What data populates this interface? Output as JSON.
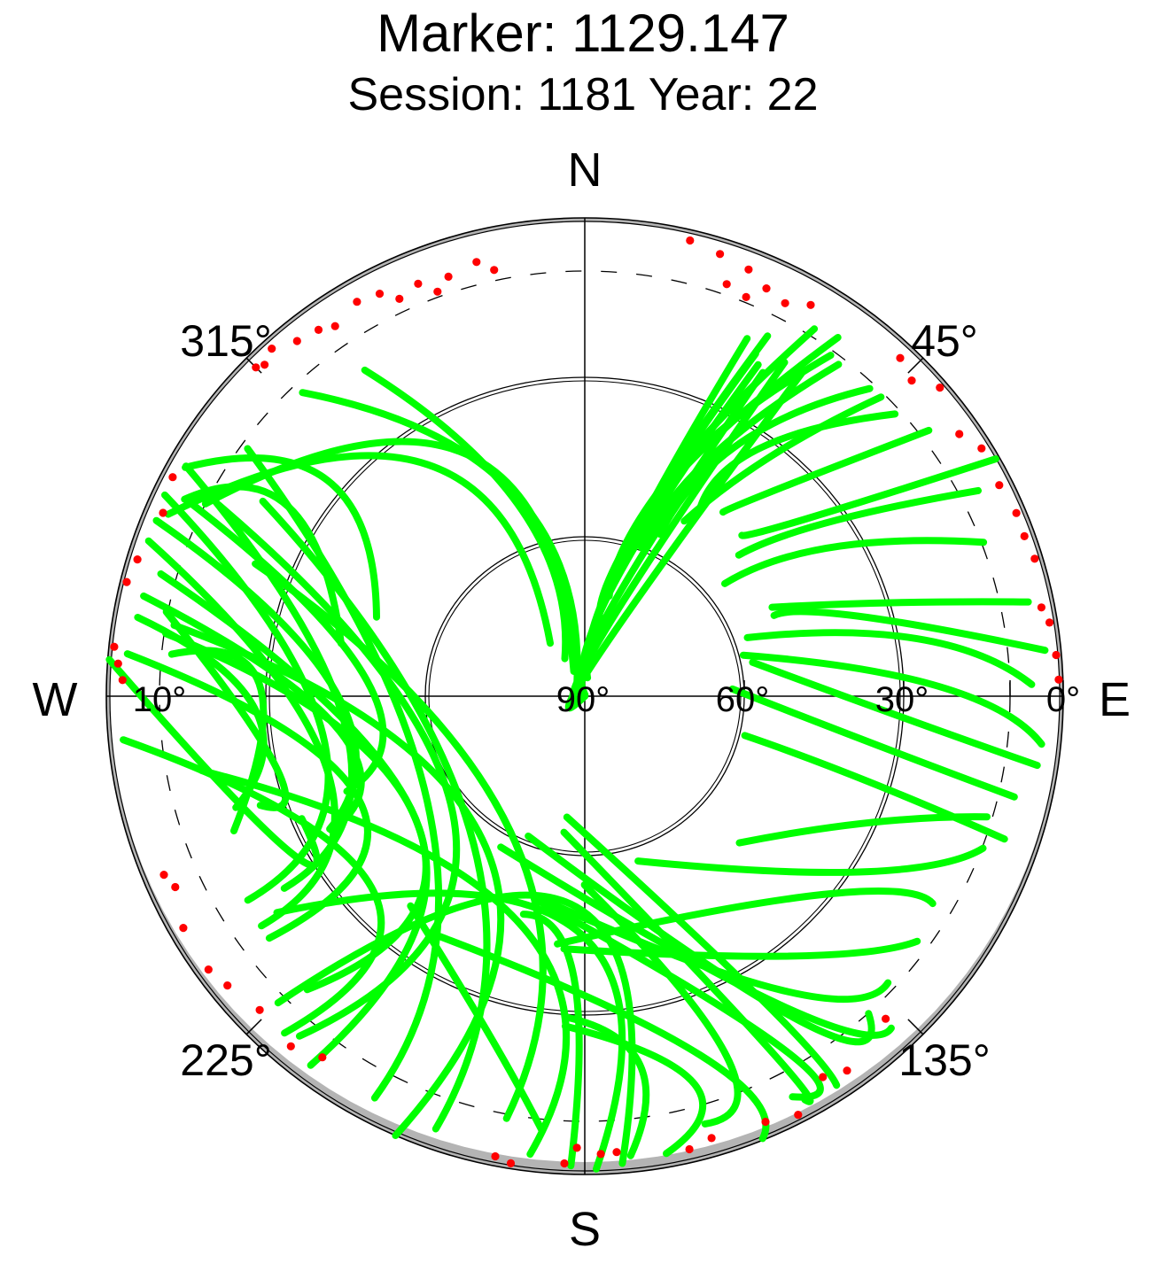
{
  "chart_data": {
    "type": "scatter",
    "projection": "polar-skyplot",
    "title": "Marker: 1129.147",
    "subtitle": "Session: 1181 Year: 22",
    "compass": {
      "north": "N",
      "south": "S",
      "east": "E",
      "west": "W"
    },
    "azimuth_tick_labels": [
      "315°",
      "45°",
      "225°",
      "135°"
    ],
    "elevation_tick_labels": [
      "10°",
      "90°",
      "60°",
      "30°",
      "0°"
    ],
    "elevation_range_deg": [
      0,
      90
    ],
    "elevation_circles_deg": [
      30,
      60
    ],
    "elevation_mask_circle_deg": 10,
    "colors": {
      "in_view": "#00ff00",
      "low_elevation": "#ff0000",
      "mask": "#b4b4b4",
      "frame": "#000000"
    },
    "tracks": [
      {
        "az": [
          -63.1,
          -25.9,
          -23.9
        ],
        "el": [
          10.0,
          39.5,
          84.9
        ]
      },
      {
        "az": [
          -42.9,
          -19.4,
          -26.9
        ],
        "el": [
          12.0,
          49.3,
          86.8
        ]
      },
      {
        "az": [
          -34.0,
          -18.8,
          -28.0
        ],
        "el": [
          16.0,
          52.7,
          82.0
        ]
      },
      {
        "az": [
          -66.4,
          -34.1,
          -33.1
        ],
        "el": [
          4.5,
          37.4,
          78.1
        ]
      },
      {
        "az": [
          -60.2,
          -50.0,
          -69.2
        ],
        "el": [
          3.4,
          26.9,
          48.1
        ]
      },
      {
        "az": [
          -63.8,
          -57.4,
          -77.8
        ],
        "el": [
          6.1,
          23.8,
          43.1
        ]
      },
      {
        "az": [
          -84.2,
          -87.8,
          -111.0
        ],
        "el": [
          11.9,
          28.7,
          19.3
        ]
      },
      {
        "az": [
          -80.0,
          -92.2,
          -107.7
        ],
        "el": [
          4.6,
          27.9,
          21.1
        ]
      },
      {
        "az": [
          -78.6,
          -103.3,
          -108.6
        ],
        "el": [
          9.7,
          30.5,
          25.6
        ]
      },
      {
        "az": [
          -85.6,
          -117.7,
          -113.4
        ],
        "el": [
          0.3,
          27.2,
          32.0
        ]
      },
      {
        "az": [
          -63.8,
          -86.1,
          -111.8
        ],
        "el": [
          6.8,
          49.0,
          41.8
        ]
      },
      {
        "az": [
          -67.7,
          -89.1,
          -117.5
        ],
        "el": [
          2.9,
          43.2,
          35.9
        ]
      },
      {
        "az": [
          -77.2,
          -98.1,
          -118.0
        ],
        "el": [
          4.9,
          43.4,
          36.1
        ]
      },
      {
        "az": [
          -84.7,
          -115.1,
          -127.5
        ],
        "el": [
          3.6,
          43.3,
          15.2
        ]
      },
      {
        "az": [
          -64.4,
          -100.1,
          -121.2
        ],
        "el": [
          2.4,
          40.3,
          15.9
        ]
      },
      {
        "az": [
          -70.4,
          -106.9,
          -125.4
        ],
        "el": [
          2.9,
          39.6,
          15.4
        ]
      },
      {
        "az": [
          -60.0,
          -98.3,
          -122.6
        ],
        "el": [
          3.4,
          44.7,
          22.9
        ]
      },
      {
        "az": [
          -73.9,
          -128.3,
          -136.6
        ],
        "el": [
          7.0,
          50.2,
          14.0
        ]
      },
      {
        "az": [
          -95.4,
          -131.9,
          -138.3
        ],
        "el": [
          2.8,
          36.1,
          5.1
        ]
      },
      {
        "az": [
          -62.4,
          -134.0,
          -140.0
        ],
        "el": [
          12.2,
          55.9,
          6.5
        ]
      },
      {
        "az": [
          -81.5,
          -128.8,
          -143.4
        ],
        "el": [
          10.3,
          50.1,
          3.5
        ]
      },
      {
        "az": [
          -53.7,
          -127.6,
          -152.4
        ],
        "el": [
          11.3,
          53.3,
          4.7
        ]
      },
      {
        "az": [
          -80.2,
          -146.6,
          -156.7
        ],
        "el": [
          11.6,
          56.1,
          0.0
        ]
      },
      {
        "az": [
          -58.8,
          -141.1,
          -161.0
        ],
        "el": [
          19.2,
          56.1,
          3.9
        ]
      },
      {
        "az": [
          -68.1,
          -153.1,
          -169.5
        ],
        "el": [
          23.2,
          60.2,
          9.2
        ]
      },
      {
        "az": [
          -101.0,
          -165.2,
          -173.2
        ],
        "el": [
          16.6,
          44.9,
          3.2
        ]
      },
      {
        "az": [
          -125.1,
          -178.0,
          178.6
        ],
        "el": [
          19.2,
          45.9,
          1.0
        ]
      },
      {
        "az": [
          -135.0,
          -176.1,
          175.4
        ],
        "el": [
          8.4,
          50.8,
          1.8
        ]
      },
      {
        "az": [
          -176.7,
          171.5,
          174.3
        ],
        "el": [
          29.5,
          19.9,
          3.1
        ]
      },
      {
        "az": [
          -164.3,
          -177.8,
          -178.3
        ],
        "el": [
          47.4,
          37.0,
          1.6
        ]
      },
      {
        "az": [
          -176.6,
          164.2,
          169.9
        ],
        "el": [
          27.8,
          14.1,
          2.6
        ]
      },
      {
        "az": [
          -140.3,
          -163.8,
          -174.4
        ],
        "el": [
          38.7,
          24.3,
          7.8
        ]
      },
      {
        "az": [
          -179.9,
          158.5,
          164.3
        ],
        "el": [
          54.5,
          17.2,
          6.4
        ]
      },
      {
        "az": [
          -148.9,
          162.2,
          158.1
        ],
        "el": [
          37.2,
          19.1,
          0.3
        ]
      },
      {
        "az": [
          -171.3,
          152.6,
          151.4
        ],
        "el": [
          64.1,
          16.1,
          3.5
        ]
      },
      {
        "az": [
          -166.3,
          150.4,
          152.6
        ],
        "el": [
          50.7,
          13.1,
          5.1
        ]
      },
      {
        "az": [
          -171.6,
          149.8,
          147.1
        ],
        "el": [
          67.0,
          24.1,
          2.8
        ]
      },
      {
        "az": [
          -158.0,
          146.4,
          138.2
        ],
        "el": [
          61.6,
          16.5,
          9.9
        ]
      },
      {
        "az": [
          -150.9,
          147.7,
          137.3
        ],
        "el": [
          57.5,
          21.3,
          5.0
        ]
      },
      {
        "az": [
          -168.0,
          146.1,
          133.4
        ],
        "el": [
          51.0,
          23.3,
          11.5
        ]
      },
      {
        "az": [
          -175.3,
          140.9,
          126.4
        ],
        "el": [
          42.3,
          27.0,
          12.3
        ]
      },
      {
        "az": [
          -173.7,
          129.8,
          120.8
        ],
        "el": [
          43.1,
          31.7,
          13.8
        ]
      },
      {
        "az": [
          162.1,
          122.2,
          110.9
        ],
        "el": [
          57.4,
          28.0,
          9.8
        ]
      },
      {
        "az": [
          133.5,
          113.8,
          106.7
        ],
        "el": [
          49.9,
          31.1,
          11.0
        ]
      },
      {
        "az": [
          103.8,
          106.7,
          108.8
        ],
        "el": [
          59.0,
          35.0,
          6.6
        ]
      },
      {
        "az": [
          87.2,
          99.5,
          103.2
        ],
        "el": [
          62.2,
          34.3,
          7.0
        ]
      },
      {
        "az": [
          78.6,
          93.8,
          98.7
        ],
        "el": [
          57.8,
          30.2,
          3.9
        ]
      },
      {
        "az": [
          75.5,
          88.5,
          96.0
        ],
        "el": [
          59.2,
          23.1,
          3.6
        ]
      },
      {
        "az": [
          70.2,
          80.2,
          88.5
        ],
        "el": [
          57.5,
          26.5,
          5.9
        ]
      },
      {
        "az": [
          66.9,
          73.6,
          84.3
        ],
        "el": [
          51.3,
          36.6,
          3.0
        ]
      },
      {
        "az": [
          64.6,
          73.3,
          78.0
        ],
        "el": [
          51.0,
          28.7,
          4.7
        ]
      },
      {
        "az": [
          51.2,
          58.9,
          68.9
        ],
        "el": [
          56.2,
          35.8,
          9.6
        ]
      },
      {
        "az": [
          47.5,
          54.5,
          62.4
        ],
        "el": [
          50.7,
          33.6,
          6.5
        ]
      },
      {
        "az": [
          44.3,
          51.4,
          60.0
        ],
        "el": [
          47.7,
          36.4,
          0.7
        ]
      },
      {
        "az": [
          36.9,
          43.0,
          52.3
        ],
        "el": [
          46.7,
          36.7,
          8.2
        ]
      },
      {
        "az": [
          31.7,
          35.1,
          47.7
        ],
        "el": [
          49.0,
          33.1,
          11.1
        ]
      },
      {
        "az": [
          29.6,
          37.9,
          44.7
        ],
        "el": [
          52.1,
          32.6,
          10.8
        ]
      },
      {
        "az": [
          24.9,
          31.4,
          42.8
        ],
        "el": [
          56.4,
          34.4,
          11.1
        ]
      },
      {
        "az": [
          20.9,
          27.9,
          37.4
        ],
        "el": [
          60.1,
          38.9,
          11.4
        ]
      },
      {
        "az": [
          17.0,
          23.9,
          35.8
        ],
        "el": [
          62.7,
          40.9,
          10.9
        ]
      },
      {
        "az": [
          15.0,
          23.0,
          35.2
        ],
        "el": [
          67.0,
          44.4,
          7.4
        ]
      },
      {
        "az": [
          13.7,
          20.5,
          32.0
        ],
        "el": [
          70.6,
          47.4,
          8.5
        ]
      },
      {
        "az": [
          13.3,
          16.3,
          26.9
        ],
        "el": [
          75.9,
          58.4,
          14.0
        ]
      },
      {
        "az": [
          11.4,
          15.5,
          24.4
        ],
        "el": [
          81.0,
          62.9,
          16.1
        ]
      },
      {
        "az": [
          8.4,
          15.3,
          26.5
        ],
        "el": [
          86.5,
          63.0,
          18.0
        ]
      },
      {
        "az": [
          7.3,
          14.5,
          27.6
        ],
        "el": [
          89.7,
          68.3,
          19.6
        ]
      },
      {
        "az": [
          4.2,
          15.6,
          28.8
        ],
        "el": [
          90.0,
          73.9,
          20.5
        ]
      },
      {
        "az": [
          1.3,
          16.6,
          30.9
        ],
        "el": [
          90.0,
          77.6,
          16.8
        ]
      },
      {
        "az": [
          0.5,
          19.7,
          33.9
        ],
        "el": [
          90.0,
          81.2,
          16.1
        ]
      }
    ],
    "low_elevation_points": [
      {
        "az": -45.0,
        "el": 2.5
      },
      {
        "az": -44.0,
        "el": 3.3
      },
      {
        "az": -42.0,
        "el": 2.0
      },
      {
        "az": -39.0,
        "el": 4.0
      },
      {
        "az": -30.0,
        "el": 4.3
      },
      {
        "az": -27.0,
        "el": 5.0
      },
      {
        "az": -22.0,
        "el": 6.3
      },
      {
        "az": -18.0,
        "el": 7.0
      },
      {
        "az": -14.0,
        "el": 5.8
      },
      {
        "az": -12.0,
        "el": 8.0
      },
      {
        "az": -34.0,
        "el": 6.0
      },
      {
        "az": -25.0,
        "el": 7.5
      },
      {
        "az": -20.0,
        "el": 9.0
      },
      {
        "az": -36.0,
        "el": 4.8
      },
      {
        "az": -62.0,
        "el": 2.2
      },
      {
        "az": -66.5,
        "el": 3.5
      },
      {
        "az": -73.0,
        "el": 2.0
      },
      {
        "az": -76.0,
        "el": 1.2
      },
      {
        "az": -84.0,
        "el": 1.0
      },
      {
        "az": -86.0,
        "el": 2.0
      },
      {
        "az": -88.0,
        "el": 3.0
      },
      {
        "az": -113.0,
        "el": 4.0
      },
      {
        "az": -115.0,
        "el": 5.0
      },
      {
        "az": -120.0,
        "el": 2.8
      },
      {
        "az": -126.0,
        "el": 2.5
      },
      {
        "az": -129.0,
        "el": 3.5
      },
      {
        "az": -134.0,
        "el": 5.0
      },
      {
        "az": -140.0,
        "el": 4.0
      },
      {
        "az": -144.0,
        "el": 6.0
      },
      {
        "az": -169.0,
        "el": 1.8
      },
      {
        "az": -171.0,
        "el": 1.0
      },
      {
        "az": -177.5,
        "el": 2.0
      },
      {
        "az": 13.0,
        "el": 2.0
      },
      {
        "az": 17.0,
        "el": 3.0
      },
      {
        "az": 21.0,
        "el": 4.0
      },
      {
        "az": 24.0,
        "el": 6.0
      },
      {
        "az": 27.0,
        "el": 7.0
      },
      {
        "az": 30.0,
        "el": 5.0
      },
      {
        "az": 22.0,
        "el": 9.0
      },
      {
        "az": 19.0,
        "el": 8.0
      },
      {
        "az": 43.0,
        "el": 3.0
      },
      {
        "az": 46.0,
        "el": 4.5
      },
      {
        "az": 49.0,
        "el": 1.5
      },
      {
        "az": 55.0,
        "el": 4.0
      },
      {
        "az": 58.0,
        "el": 2.0
      },
      {
        "az": 63.0,
        "el": 2.5
      },
      {
        "az": 67.0,
        "el": 1.8
      },
      {
        "az": 70.0,
        "el": 2.0
      },
      {
        "az": 73.0,
        "el": 1.5
      },
      {
        "az": 79.0,
        "el": 2.5
      },
      {
        "az": 81.0,
        "el": 1.5
      },
      {
        "az": 85.0,
        "el": 1.0
      },
      {
        "az": 88.0,
        "el": 0.8
      },
      {
        "az": 137.0,
        "el": 7.0
      },
      {
        "az": 145.0,
        "el": 4.0
      },
      {
        "az": 148.0,
        "el": 5.5
      },
      {
        "az": 153.0,
        "el": 1.6
      },
      {
        "az": 157.0,
        "el": 3.0
      },
      {
        "az": 164.0,
        "el": 3.5
      },
      {
        "az": 167.0,
        "el": 2.5
      },
      {
        "az": 176.0,
        "el": 4.0
      },
      {
        "az": 178.0,
        "el": 3.8
      },
      {
        "az": -179.0,
        "el": 5.0
      }
    ]
  }
}
